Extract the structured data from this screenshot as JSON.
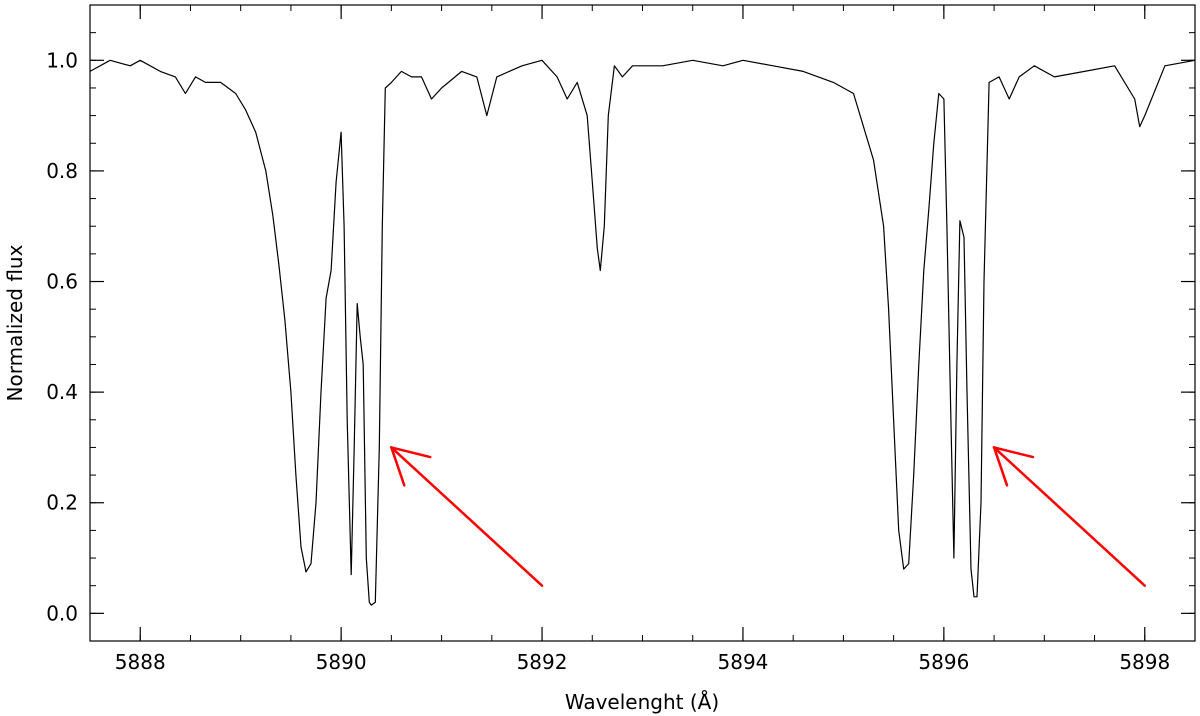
{
  "chart_data": {
    "type": "line",
    "title": "",
    "xlabel": "Wavelenght (Å)",
    "ylabel": "Normalized flux",
    "xlim": [
      5887.5,
      5898.5
    ],
    "ylim": [
      -0.05,
      1.1
    ],
    "grid": false,
    "legend": "none",
    "x_ticks": [
      5888,
      5890,
      5892,
      5894,
      5896,
      5898
    ],
    "x_tick_labels": [
      "5888",
      "5890",
      "5892",
      "5894",
      "5896",
      "5898"
    ],
    "x_minor_step": 0.5,
    "y_ticks": [
      0.0,
      0.2,
      0.4,
      0.6,
      0.8,
      1.0
    ],
    "y_tick_labels": [
      "0.0",
      "0.2",
      "0.4",
      "0.6",
      "0.8",
      "1.0"
    ],
    "y_minor_step": 0.05,
    "series": [
      {
        "color": "#000000",
        "x": [
          5887.5,
          5887.7,
          5887.9,
          5888.0,
          5888.2,
          5888.35,
          5888.45,
          5888.55,
          5888.65,
          5888.8,
          5888.95,
          5889.05,
          5889.15,
          5889.25,
          5889.32,
          5889.38,
          5889.44,
          5889.5,
          5889.55,
          5889.6,
          5889.65,
          5889.7,
          5889.75,
          5889.8,
          5889.85,
          5889.9,
          5889.95,
          5890.0,
          5890.03,
          5890.06,
          5890.1,
          5890.13,
          5890.16,
          5890.19,
          5890.22,
          5890.25,
          5890.28,
          5890.3,
          5890.34,
          5890.38,
          5890.41,
          5890.44,
          5890.5,
          5890.6,
          5890.7,
          5890.8,
          5890.9,
          5891.0,
          5891.2,
          5891.35,
          5891.45,
          5891.55,
          5891.8,
          5892.0,
          5892.15,
          5892.25,
          5892.35,
          5892.45,
          5892.5,
          5892.55,
          5892.58,
          5892.62,
          5892.66,
          5892.72,
          5892.8,
          5892.9,
          5893.2,
          5893.5,
          5893.8,
          5894.0,
          5894.3,
          5894.6,
          5894.9,
          5895.1,
          5895.2,
          5895.3,
          5895.4,
          5895.45,
          5895.5,
          5895.55,
          5895.6,
          5895.65,
          5895.7,
          5895.75,
          5895.8,
          5895.85,
          5895.9,
          5895.95,
          5896.0,
          5896.03,
          5896.07,
          5896.1,
          5896.13,
          5896.16,
          5896.2,
          5896.23,
          5896.27,
          5896.3,
          5896.33,
          5896.37,
          5896.4,
          5896.45,
          5896.55,
          5896.65,
          5896.75,
          5896.9,
          5897.1,
          5897.4,
          5897.7,
          5897.9,
          5897.95,
          5898.0,
          5898.2,
          5898.5
        ],
        "values": [
          0.98,
          1.0,
          0.99,
          1.0,
          0.98,
          0.97,
          0.94,
          0.97,
          0.96,
          0.96,
          0.94,
          0.91,
          0.87,
          0.8,
          0.72,
          0.63,
          0.53,
          0.4,
          0.25,
          0.12,
          0.075,
          0.09,
          0.2,
          0.4,
          0.57,
          0.62,
          0.78,
          0.87,
          0.7,
          0.35,
          0.07,
          0.3,
          0.56,
          0.5,
          0.45,
          0.1,
          0.02,
          0.015,
          0.02,
          0.3,
          0.7,
          0.95,
          0.96,
          0.98,
          0.97,
          0.97,
          0.93,
          0.95,
          0.98,
          0.97,
          0.9,
          0.97,
          0.99,
          1.0,
          0.97,
          0.93,
          0.96,
          0.9,
          0.78,
          0.66,
          0.62,
          0.7,
          0.9,
          0.99,
          0.97,
          0.99,
          0.99,
          1.0,
          0.99,
          1.0,
          0.99,
          0.98,
          0.96,
          0.94,
          0.88,
          0.82,
          0.7,
          0.55,
          0.35,
          0.15,
          0.08,
          0.09,
          0.25,
          0.45,
          0.62,
          0.73,
          0.85,
          0.94,
          0.93,
          0.7,
          0.35,
          0.1,
          0.45,
          0.71,
          0.68,
          0.4,
          0.08,
          0.03,
          0.03,
          0.2,
          0.6,
          0.96,
          0.97,
          0.93,
          0.97,
          0.99,
          0.97,
          0.98,
          0.99,
          0.93,
          0.88,
          0.9,
          0.99,
          1.0
        ]
      }
    ],
    "annotations": [
      {
        "type": "arrow",
        "color": "#ff0000",
        "from": [
          5892.0,
          0.05
        ],
        "to": [
          5890.5,
          0.3
        ]
      },
      {
        "type": "arrow",
        "color": "#ff0000",
        "from": [
          5898.0,
          0.05
        ],
        "to": [
          5896.5,
          0.3
        ]
      }
    ]
  }
}
